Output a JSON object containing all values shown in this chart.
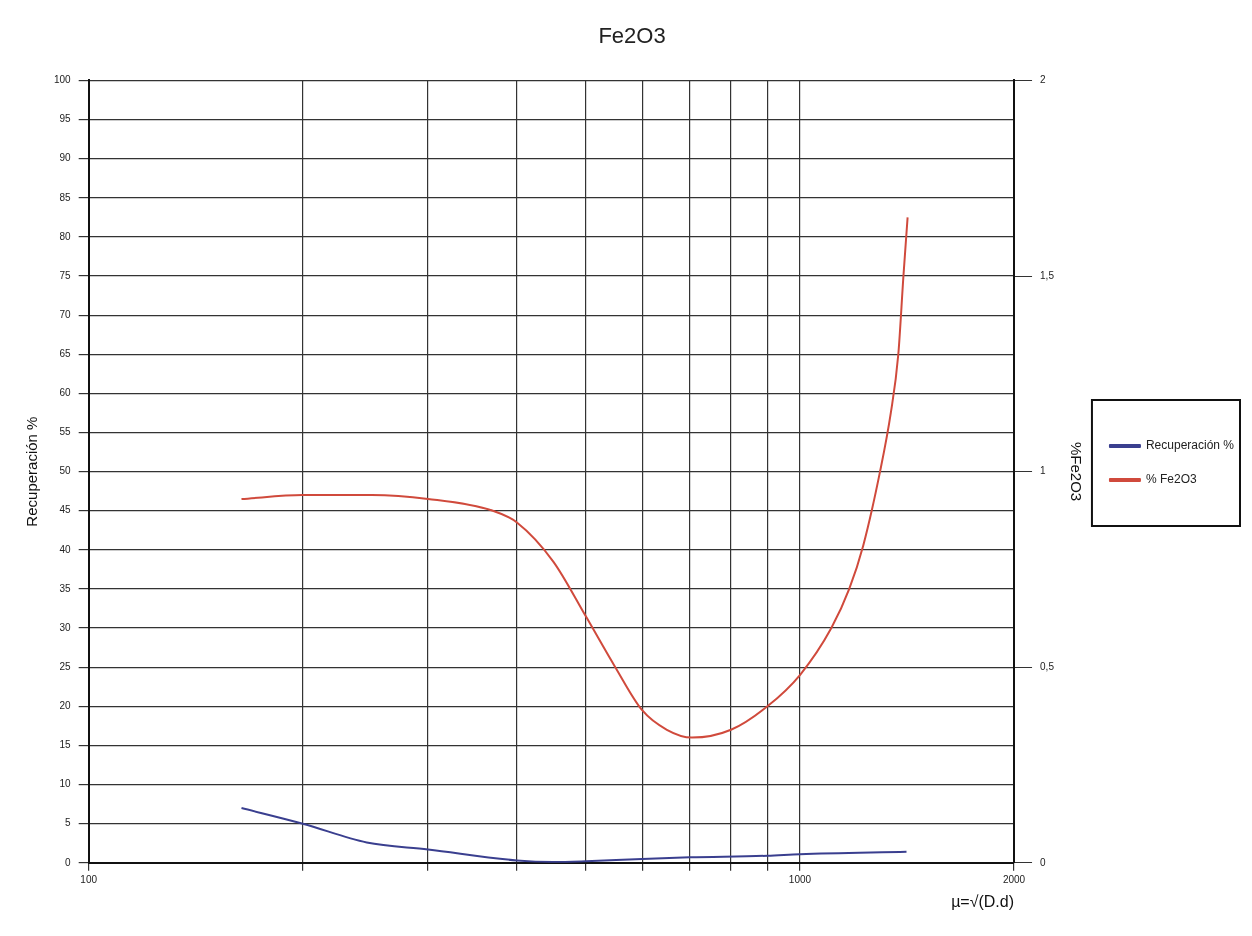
{
  "chart_data": {
    "type": "line",
    "title": "Fe2O3",
    "xlabel": "µ=√(D.d)",
    "ylabel": "Recuperación %",
    "y2label": "%Fe2O3",
    "log": "x",
    "xlim": [
      100,
      2000
    ],
    "xticks": [
      100,
      {
        "value": 200,
        "label": null
      },
      {
        "value": 300,
        "label": null
      },
      {
        "value": 400,
        "label": null
      },
      {
        "value": 500,
        "label": null
      },
      {
        "value": 600,
        "label": null
      },
      {
        "value": 700,
        "label": null
      },
      {
        "value": 800,
        "label": null
      },
      {
        "value": 900,
        "label": null
      },
      1000,
      2000
    ],
    "ylim": [
      0,
      100
    ],
    "yticks": [
      0,
      5,
      10,
      15,
      20,
      25,
      30,
      35,
      40,
      45,
      50,
      55,
      60,
      65,
      70,
      75,
      80,
      85,
      90,
      95,
      100
    ],
    "y2lim": [
      0,
      2
    ],
    "y2ticks": [
      0,
      {
        "value": 0.5,
        "label": "0,5"
      },
      1,
      {
        "value": 1.5,
        "label": "1,5"
      },
      2
    ],
    "grid": true,
    "legend": "right",
    "marker": "none",
    "line_style": "solid",
    "series": [
      {
        "name": "Recuperación %",
        "color": "#3a3f8f",
        "x": [
          164,
          200,
          246,
          300,
          400,
          450,
          500,
          600,
          700,
          900,
          1000,
          1412
        ],
        "values": [
          7.0,
          5.0,
          2.6,
          1.7,
          0.3,
          0.1,
          0.2,
          0.5,
          0.7,
          0.9,
          1.1,
          1.4
        ]
      },
      {
        "name": "% Fe2O3",
        "color": "#d04a3c",
        "axis": "y2",
        "x": [
          164,
          200,
          250,
          300,
          370,
          400,
          450,
          500,
          550,
          600,
          650,
          705,
          800,
          900,
          1000,
          1107,
          1173,
          1227,
          1296,
          1342,
          1375,
          1398,
          1417
        ],
        "values": [
          0.93,
          0.94,
          0.94,
          0.93,
          0.9,
          0.87,
          0.77,
          0.63,
          0.5,
          0.39,
          0.34,
          0.32,
          0.34,
          0.4,
          0.48,
          0.6,
          0.7,
          0.81,
          1.0,
          1.15,
          1.3,
          1.5,
          1.65
        ]
      }
    ]
  }
}
